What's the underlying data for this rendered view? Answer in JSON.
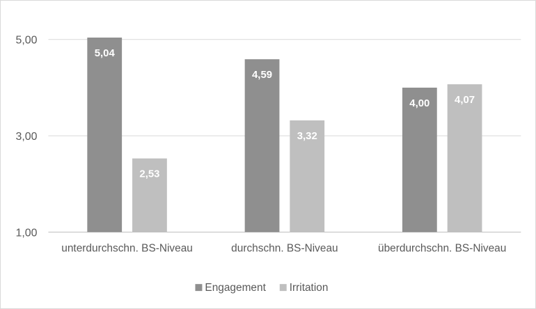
{
  "chart_data": {
    "type": "bar",
    "categories": [
      "unterdurchschn. BS-Niveau",
      "durchschn. BS-Niveau",
      "überdurchschn. BS-Niveau"
    ],
    "series": [
      {
        "name": "Engagement",
        "values": [
          5.04,
          4.59,
          4.0
        ],
        "labels": [
          "5,04",
          "4,59",
          "4,00"
        ],
        "color": "#8f8f8f"
      },
      {
        "name": "Irritation",
        "values": [
          2.53,
          3.32,
          4.07
        ],
        "labels": [
          "2,53",
          "3,32",
          "4,07"
        ],
        "color": "#bfbfbf"
      }
    ],
    "yticks": [
      1,
      3,
      5
    ],
    "ytick_labels": [
      "1,00",
      "3,00",
      "5,00"
    ],
    "ylim": [
      1,
      5
    ],
    "grid": true,
    "legend_position": "bottom",
    "title": "",
    "xlabel": "",
    "ylabel": ""
  }
}
